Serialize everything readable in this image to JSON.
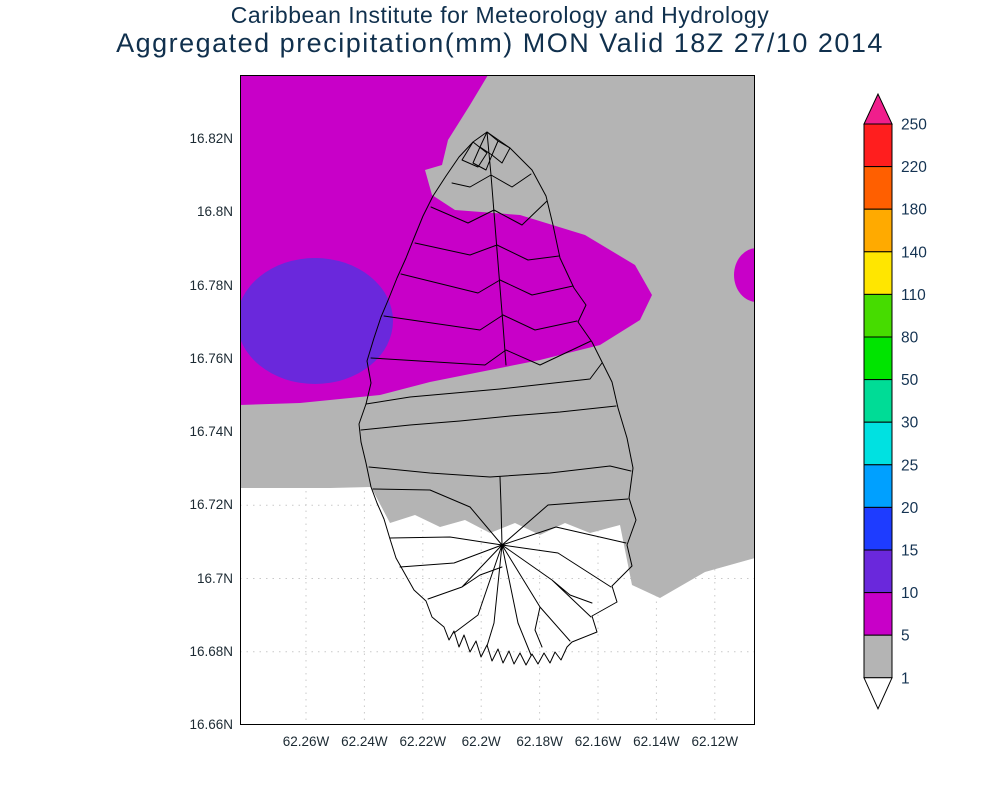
{
  "header": {
    "line1": "Caribbean Institute for Meteorology and Hydrology",
    "line2": "Aggregated precipitation(mm) MON Valid 18Z 27/10 2014",
    "title_color": "#10304d"
  },
  "map": {
    "lat_ticks": [
      "16.82N",
      "16.8N",
      "16.78N",
      "16.76N",
      "16.74N",
      "16.72N",
      "16.7N",
      "16.68N",
      "16.66N"
    ],
    "lon_ticks": [
      "62.26W",
      "62.24W",
      "62.22W",
      "62.2W",
      "62.18W",
      "62.16W",
      "62.14W",
      "62.12W"
    ],
    "axis_label_color": "#1c2a33",
    "gridline_color": "#c9c9c9",
    "coastline_color": "#000000"
  },
  "chart_data": {
    "type": "heatmap",
    "title": "Aggregated precipitation(mm) MON Valid 18Z 27/10 2014",
    "subtitle": "Caribbean Institute for Meteorology and Hydrology",
    "variable": "Aggregated precipitation (mm)",
    "region_label": "MON",
    "valid_time": "18Z 27/10 2014",
    "overlay": "island watershed boundaries",
    "grid": "dotted",
    "legend_position": "right",
    "colorbar": {
      "levels": [
        1,
        5,
        10,
        15,
        20,
        25,
        30,
        50,
        80,
        110,
        140,
        180,
        220,
        250
      ],
      "tick_labels": [
        "250",
        "220",
        "180",
        "140",
        "110",
        "80",
        "50",
        "30",
        "25",
        "20",
        "15",
        "10",
        "5",
        "1"
      ],
      "colors_bottom_to_top": [
        "#ffffff",
        "#b4b4b4",
        "#c800c8",
        "#6a28dc",
        "#1e3cff",
        "#00a0ff",
        "#00e1e1",
        "#00dc96",
        "#00e400",
        "#46dc00",
        "#ffe600",
        "#ffaa00",
        "#ff5f00",
        "#ff1e1e",
        "#f01e8c"
      ],
      "label_color": "#143352"
    },
    "filled_regions": [
      {
        "range_mm": "<1",
        "color": "#ffffff",
        "area": "southern and southwestern part of domain"
      },
      {
        "range_mm": "1-5",
        "color": "#b4b4b4",
        "area": "most of the domain"
      },
      {
        "range_mm": "5-10",
        "color": "#c800c8",
        "area": "northwest sector with tongue across north of island; small patch at east edge near 16.77N"
      },
      {
        "range_mm": "10-15",
        "color": "#6a28dc",
        "area": "lens at west edge near 16.76-16.78N"
      }
    ]
  }
}
